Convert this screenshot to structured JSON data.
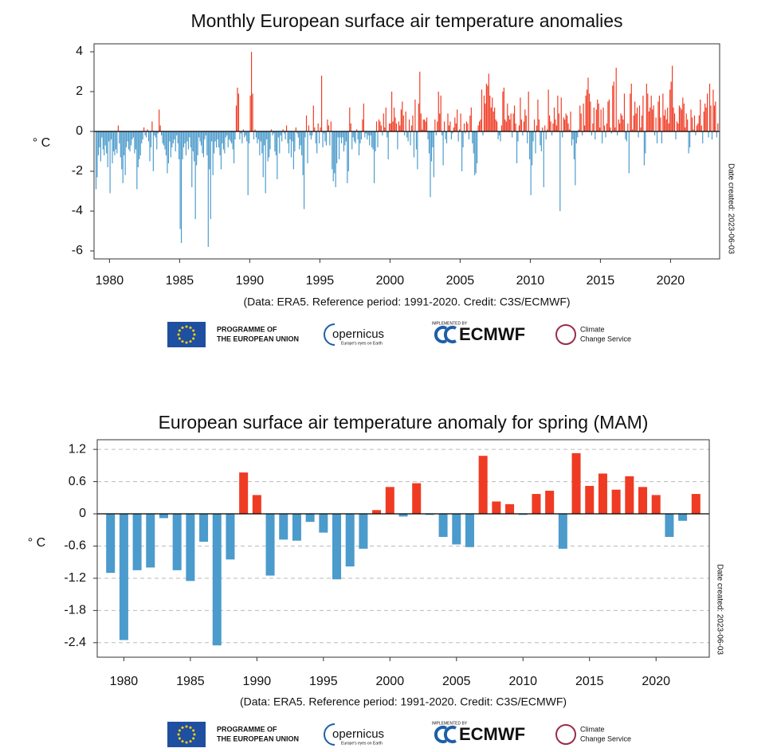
{
  "chart_data": [
    {
      "type": "bar",
      "title": "Monthly European surface air temperature anomalies",
      "ylabel": "° C",
      "date_note": "Date created: 2023-06-03",
      "caption": "(Data: ERA5.  Reference period: 1991-2020.  Credit: C3S/ECMWF)",
      "x": [
        1979,
        1980,
        1981,
        1982,
        1983,
        1984,
        1985,
        1986,
        1987,
        1988,
        1989,
        1990,
        1991,
        1992,
        1993,
        1994,
        1995,
        1996,
        1997,
        1998,
        1999,
        2000,
        2001,
        2002,
        2003,
        2004,
        2005,
        2006,
        2007,
        2008,
        2009,
        2010,
        2011,
        2012,
        2013,
        2014,
        2015,
        2016,
        2017,
        2018,
        2019,
        2020,
        2021,
        2022,
        2023
      ],
      "values": [
        [
          -2.9,
          -2.3,
          -1.2,
          -0.8,
          -1.5,
          -0.3,
          -0.9,
          -1.2,
          -0.7,
          -1.1,
          -1.8,
          -0.5
        ],
        [
          -3.1,
          -0.4,
          -1.6,
          -1.0,
          -1.2,
          -0.9,
          -1.1,
          0.3,
          -0.6,
          -1.3,
          -1.9,
          -2.6
        ],
        [
          -1.2,
          -2.2,
          -0.8,
          -0.5,
          -0.9,
          -1.0,
          -0.7,
          -0.4,
          -0.3,
          -1.1,
          -0.9,
          -2.9
        ],
        [
          -1.8,
          -1.4,
          -1.2,
          -0.6,
          -0.4,
          0.2,
          -0.2,
          -0.3,
          0.1,
          -0.5,
          -1.5,
          -0.8
        ],
        [
          0.5,
          -2.0,
          -0.2,
          -0.3,
          -0.9,
          -0.1,
          1.1,
          0.3,
          -0.2,
          -0.6,
          -0.7,
          -0.9
        ],
        [
          -1.2,
          -2.1,
          -1.6,
          -0.5,
          -1.3,
          -0.8,
          -0.6,
          -0.4,
          -1.0,
          -0.2,
          -0.6,
          -1.4
        ],
        [
          -4.9,
          -5.6,
          -1.4,
          -0.8,
          -0.6,
          -1.2,
          -0.5,
          -0.9,
          -0.3,
          -0.8,
          -2.8,
          -1.0
        ],
        [
          -1.5,
          -4.4,
          -1.7,
          -1.2,
          -0.3,
          -0.5,
          -0.7,
          -1.1,
          -1.3,
          -0.4,
          -0.2,
          -1.2
        ],
        [
          -5.8,
          -1.9,
          -4.4,
          -0.5,
          -2.2,
          -1.1,
          -0.5,
          -0.8,
          -0.4,
          -0.8,
          -1.2,
          -1.9
        ],
        [
          -0.6,
          -0.9,
          -1.1,
          -0.3,
          -0.2,
          -0.8,
          -0.4,
          -0.5,
          -0.6,
          -0.9,
          -1.6,
          -0.4
        ],
        [
          1.3,
          2.2,
          1.9,
          -0.4,
          -0.1,
          -0.6,
          0.1,
          -0.3,
          -0.2,
          -0.5,
          -3.2,
          -0.6
        ],
        [
          1.8,
          4.0,
          1.9,
          -0.4,
          0.1,
          -0.3,
          -0.6,
          -0.4,
          -1.2,
          -0.5,
          -1.1,
          -2.3
        ],
        [
          -0.7,
          -3.1,
          -0.4,
          -1.5,
          -1.3,
          -0.9,
          0.1,
          -0.2,
          -0.1,
          -1.0,
          -1.2,
          -2.4
        ],
        [
          -0.3,
          -1.1,
          -0.2,
          -0.5,
          0.1,
          -0.1,
          -0.4,
          0.3,
          -0.6,
          -1.1,
          -0.4,
          -1.3
        ],
        [
          -0.5,
          -1.9,
          -1.0,
          0.2,
          -0.1,
          -0.3,
          -0.9,
          -0.7,
          -1.2,
          -2.2,
          -3.9,
          -0.3
        ],
        [
          0.8,
          -1.6,
          0.3,
          -0.2,
          -0.4,
          -0.2,
          1.3,
          0.2,
          -0.6,
          -1.1,
          0.4,
          -0.6
        ],
        [
          0.2,
          2.8,
          -0.8,
          -0.1,
          -0.5,
          -0.7,
          0.6,
          0.3,
          -0.7,
          0.5,
          -1.9,
          -2.5
        ],
        [
          -2.1,
          -2.8,
          -1.6,
          -0.3,
          -1.4,
          -0.3,
          -0.6,
          -0.3,
          -1.0,
          -0.7,
          -0.5,
          -2.6
        ],
        [
          -2.0,
          1.2,
          0.4,
          -0.9,
          -0.3,
          -0.5,
          -0.6,
          0.1,
          -0.4,
          -1.2,
          -0.6,
          -0.4
        ],
        [
          0.6,
          1.4,
          -0.3,
          -0.1,
          -0.4,
          -0.2,
          -0.7,
          -0.2,
          -0.8,
          -0.9,
          -2.6,
          -1.0
        ],
        [
          0.5,
          -0.8,
          0.6,
          0.5,
          0.3,
          -0.2,
          0.9,
          0.2,
          1.2,
          -0.3,
          -1.4,
          0.4
        ],
        [
          0.4,
          2.0,
          0.5,
          1.2,
          0.7,
          0.4,
          -0.9,
          0.5,
          0.3,
          1.1,
          1.5,
          0.8
        ],
        [
          -0.2,
          1.0,
          -0.3,
          -0.5,
          0.6,
          -0.7,
          0.3,
          0.8,
          -1.3,
          1.6,
          -0.9,
          -1.9
        ],
        [
          1.4,
          3.0,
          0.9,
          0.1,
          0.6,
          0.6,
          0.5,
          0.7,
          -0.4,
          -1.1,
          -3.3,
          -1.5
        ],
        [
          -0.8,
          -2.3,
          0.6,
          -0.2,
          0.5,
          2.0,
          0.9,
          1.8,
          -0.2,
          -1.7,
          0.5,
          -0.4
        ],
        [
          -0.6,
          0.9,
          0.3,
          0.5,
          -0.4,
          -0.1,
          0.2,
          0.7,
          0.4,
          1.1,
          -0.5,
          0.1
        ],
        [
          0.9,
          -2.0,
          -0.8,
          0.4,
          -0.1,
          0.5,
          0.4,
          -0.4,
          0.8,
          1.2,
          -0.6,
          -1.1
        ],
        [
          -2.2,
          -2.1,
          -1.6,
          0.3,
          0.5,
          0.6,
          2.1,
          -0.2,
          1.8,
          1.4,
          2.4,
          2.3
        ],
        [
          2.9,
          1.8,
          1.2,
          1.7,
          1.0,
          1.2,
          0.6,
          0.5,
          -0.4,
          -0.2,
          -0.5,
          0.3
        ],
        [
          2.0,
          2.2,
          0.6,
          0.5,
          1.4,
          0.8,
          0.6,
          0.9,
          -0.3,
          0.9,
          1.3,
          0.4
        ],
        [
          -1.6,
          -0.5,
          0.3,
          1.7,
          0.6,
          -0.2,
          0.5,
          1.1,
          0.8,
          -0.6,
          2.0,
          -1.4
        ],
        [
          -3.2,
          -1.7,
          -0.5,
          0.6,
          -1.1,
          0.3,
          1.6,
          0.6,
          -0.7,
          -1.0,
          0.2,
          -2.8
        ],
        [
          0.3,
          -0.4,
          0.1,
          2.1,
          0.8,
          0.5,
          -0.2,
          0.4,
          1.2,
          0.6,
          0.3,
          1.8
        ],
        [
          0.9,
          -4.0,
          1.7,
          -0.3,
          0.7,
          0.6,
          0.9,
          0.8,
          0.4,
          0.1,
          1.0,
          -0.7
        ],
        [
          -0.4,
          -1.4,
          -2.7,
          -0.6,
          -0.3,
          0.1,
          1.3,
          0.9,
          -0.2,
          1.4,
          0.3,
          1.8
        ],
        [
          2.1,
          2.7,
          1.9,
          1.5,
          -0.2,
          0.4,
          1.2,
          -0.4,
          1.1,
          1.6,
          1.4,
          0.2
        ],
        [
          1.1,
          -0.6,
          1.2,
          0.3,
          -0.3,
          0.4,
          1.5,
          1.6,
          0.2,
          -0.1,
          2.3,
          2.5
        ],
        [
          0.2,
          3.2,
          -0.2,
          0.6,
          0.4,
          0.9,
          0.8,
          0.6,
          1.9,
          -0.4,
          -0.5,
          0.4
        ],
        [
          -2.1,
          1.9,
          2.4,
          0.1,
          0.8,
          1.5,
          0.9,
          1.2,
          -0.3,
          1.3,
          0.2,
          0.8
        ],
        [
          1.8,
          -1.7,
          -1.1,
          2.4,
          1.9,
          1.0,
          1.2,
          1.8,
          1.1,
          1.3,
          -0.2,
          0.7
        ],
        [
          -0.6,
          1.5,
          1.8,
          0.7,
          -0.6,
          1.9,
          0.8,
          1.1,
          0.6,
          1.2,
          0.4,
          2.1
        ],
        [
          2.5,
          3.3,
          1.2,
          0.9,
          -0.4,
          0.5,
          0.4,
          1.3,
          1.2,
          1.1,
          1.7,
          1.4
        ],
        [
          0.2,
          0.9,
          0.6,
          -1.1,
          -0.8,
          1.1,
          0.7,
          0.1,
          0.8,
          -0.2,
          0.3,
          0.4
        ],
        [
          0.8,
          1.6,
          0.3,
          -0.6,
          1.0,
          1.4,
          1.2,
          1.9,
          -0.3,
          2.4,
          1.3,
          -0.4
        ],
        [
          2.1,
          1.3,
          1.5,
          -0.3,
          0.4
        ]
      ],
      "xlim": [
        1978.9,
        2023.5
      ],
      "ylim": [
        -6.4,
        4.4
      ],
      "xticks": [
        1980,
        1985,
        1990,
        1995,
        2000,
        2005,
        2010,
        2015,
        2020
      ],
      "yticks": [
        -6,
        -4,
        -2,
        0,
        2,
        4
      ],
      "colors": {
        "positive": "#ef3b23",
        "negative": "#4b9bcc"
      },
      "grid": false
    },
    {
      "type": "bar",
      "title": "European surface air temperature anomaly for spring (MAM)",
      "ylabel": "° C",
      "date_note": "Date created: 2023-06-03",
      "caption": "(Data: ERA5.  Reference period: 1991-2020.  Credit: C3S/ECMWF)",
      "x": [
        1979,
        1980,
        1981,
        1982,
        1983,
        1984,
        1985,
        1986,
        1987,
        1988,
        1989,
        1990,
        1991,
        1992,
        1993,
        1994,
        1995,
        1996,
        1997,
        1998,
        1999,
        2000,
        2001,
        2002,
        2003,
        2004,
        2005,
        2006,
        2007,
        2008,
        2009,
        2010,
        2011,
        2012,
        2013,
        2014,
        2015,
        2016,
        2017,
        2018,
        2019,
        2020,
        2021,
        2022,
        2023
      ],
      "values": [
        -1.1,
        -2.35,
        -1.05,
        -1.0,
        -0.08,
        -1.05,
        -1.25,
        -0.52,
        -2.45,
        -0.85,
        0.77,
        0.35,
        -1.15,
        -0.48,
        -0.5,
        -0.15,
        -0.35,
        -1.22,
        -0.98,
        -0.65,
        0.07,
        0.5,
        -0.05,
        0.57,
        -0.02,
        -0.43,
        -0.57,
        -0.62,
        1.08,
        0.23,
        0.18,
        -0.02,
        0.37,
        0.43,
        -0.65,
        1.13,
        0.52,
        0.75,
        0.45,
        0.7,
        0.5,
        0.35,
        -0.43,
        -0.13,
        0.37
      ],
      "xlim": [
        1978,
        2024
      ],
      "ylim": [
        -2.67,
        1.38
      ],
      "xticks": [
        1980,
        1985,
        1990,
        1995,
        2000,
        2005,
        2010,
        2015,
        2020
      ],
      "yticks": [
        1.2,
        0.6,
        0,
        -0.6,
        -1.2,
        -1.8,
        -2.4
      ],
      "colors": {
        "positive": "#ef3b23",
        "negative": "#4b9bcc"
      },
      "grid": true
    }
  ],
  "logos": {
    "eu": "PROGRAMME OF",
    "eu2": "THE EUROPEAN UNION",
    "copernicus": "opernicus",
    "copernicus_tag": "Europe's eyes on Earth",
    "implemented": "IMPLEMENTED BY",
    "ecmwf": "ECMWF",
    "c3s": "Climate",
    "c3s2": "Change Service"
  }
}
